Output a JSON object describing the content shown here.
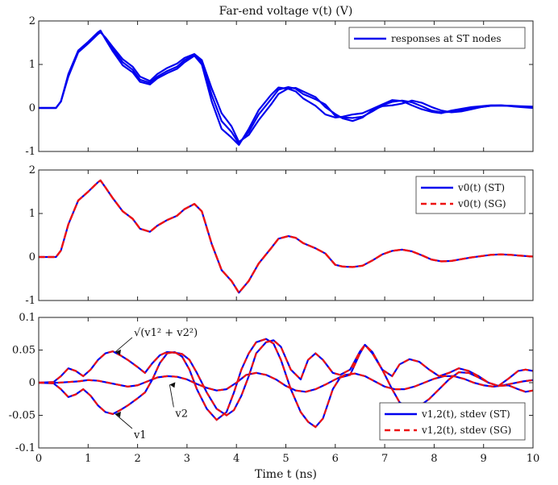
{
  "chart_data": [
    {
      "type": "line",
      "title": "Far-end voltage v(t) (V)",
      "xlabel": "",
      "ylabel": "",
      "xlim": [
        0,
        10
      ],
      "ylim": [
        -1,
        2
      ],
      "yticks": [
        "-1",
        "0",
        "1",
        "2"
      ],
      "legend": {
        "position": "top-right",
        "entries": [
          "responses at ST nodes"
        ]
      },
      "series": [
        {
          "name": "responses at ST nodes",
          "color": "#0000ee",
          "x": [
            0,
            0.35,
            0.45,
            0.6,
            0.8,
            1.0,
            1.2,
            1.25,
            1.35,
            1.5,
            1.7,
            1.9,
            2.05,
            2.25,
            2.4,
            2.6,
            2.8,
            2.95,
            3.15,
            3.3,
            3.5,
            3.7,
            3.9,
            4.05,
            4.25,
            4.45,
            4.7,
            4.85,
            5.05,
            5.2,
            5.35,
            5.6,
            5.8,
            6.0,
            6.15,
            6.35,
            6.55,
            6.75,
            6.95,
            7.15,
            7.35,
            7.55,
            7.75,
            7.95,
            8.15,
            8.35,
            8.55,
            8.75,
            8.95,
            9.15,
            9.35,
            9.55,
            9.75,
            10
          ],
          "y": [
            0,
            0,
            0.15,
            0.75,
            1.3,
            1.5,
            1.72,
            1.76,
            1.6,
            1.35,
            1.05,
            0.88,
            0.65,
            0.58,
            0.72,
            0.85,
            0.95,
            1.1,
            1.22,
            1.05,
            0.3,
            -0.3,
            -0.55,
            -0.82,
            -0.55,
            -0.15,
            0.2,
            0.42,
            0.48,
            0.44,
            0.32,
            0.2,
            0.08,
            -0.18,
            -0.22,
            -0.23,
            -0.2,
            -0.08,
            0.06,
            0.14,
            0.17,
            0.13,
            0.04,
            -0.06,
            -0.1,
            -0.09,
            -0.05,
            -0.01,
            0.02,
            0.05,
            0.06,
            0.05,
            0.03,
            0.01
          ]
        },
        {
          "name": "",
          "color": "#0000ee",
          "x": [
            0,
            0.35,
            0.45,
            0.6,
            0.8,
            1.0,
            1.2,
            1.25,
            1.35,
            1.5,
            1.7,
            1.9,
            2.05,
            2.25,
            2.4,
            2.6,
            2.8,
            2.95,
            3.15,
            3.3,
            3.5,
            3.7,
            3.9,
            4.05,
            4.25,
            4.45,
            4.7,
            4.85,
            5.05,
            5.2,
            5.35,
            5.6,
            5.8,
            6.0,
            6.15,
            6.35,
            6.55,
            6.75,
            6.95,
            7.15,
            7.35,
            7.55,
            7.75,
            7.95,
            8.15,
            8.35,
            8.55,
            8.75,
            8.95,
            9.15,
            9.35,
            9.55,
            9.75,
            10
          ],
          "y": [
            0,
            0,
            0.15,
            0.72,
            1.28,
            1.48,
            1.7,
            1.74,
            1.62,
            1.4,
            1.12,
            0.95,
            0.72,
            0.62,
            0.78,
            0.92,
            1.02,
            1.15,
            1.24,
            1.1,
            0.45,
            -0.12,
            -0.42,
            -0.78,
            -0.62,
            -0.28,
            0.08,
            0.32,
            0.45,
            0.46,
            0.38,
            0.25,
            0.02,
            -0.14,
            -0.24,
            -0.3,
            -0.22,
            -0.05,
            0.04,
            0.06,
            0.1,
            0.17,
            0.12,
            0.02,
            -0.06,
            -0.1,
            -0.08,
            -0.03,
            0.02,
            0.05,
            0.05,
            0.05,
            0.04,
            0.03
          ]
        },
        {
          "name": "",
          "color": "#0000ee",
          "x": [
            0,
            0.35,
            0.45,
            0.6,
            0.8,
            1.0,
            1.2,
            1.25,
            1.35,
            1.5,
            1.7,
            1.9,
            2.05,
            2.25,
            2.4,
            2.6,
            2.8,
            2.95,
            3.15,
            3.3,
            3.5,
            3.7,
            3.9,
            4.05,
            4.25,
            4.45,
            4.7,
            4.85,
            5.05,
            5.2,
            5.35,
            5.6,
            5.8,
            6.0,
            6.15,
            6.35,
            6.55,
            6.75,
            6.95,
            7.15,
            7.35,
            7.55,
            7.75,
            7.95,
            8.15,
            8.35,
            8.55,
            8.75,
            8.95,
            9.15,
            9.35,
            9.55,
            9.75,
            10
          ],
          "y": [
            0,
            0,
            0.15,
            0.78,
            1.32,
            1.52,
            1.74,
            1.78,
            1.58,
            1.3,
            0.98,
            0.82,
            0.6,
            0.54,
            0.68,
            0.8,
            0.9,
            1.05,
            1.2,
            1.0,
            0.15,
            -0.48,
            -0.68,
            -0.85,
            -0.48,
            -0.05,
            0.3,
            0.47,
            0.44,
            0.38,
            0.22,
            0.05,
            -0.15,
            -0.22,
            -0.2,
            -0.15,
            -0.12,
            -0.02,
            0.08,
            0.18,
            0.16,
            0.06,
            -0.03,
            -0.09,
            -0.12,
            -0.06,
            -0.02,
            0.02,
            0.04,
            0.06,
            0.06,
            0.04,
            0.02,
            0.0
          ]
        }
      ]
    },
    {
      "type": "line",
      "title": "",
      "xlabel": "",
      "ylabel": "",
      "xlim": [
        0,
        10
      ],
      "ylim": [
        -1,
        2
      ],
      "yticks": [
        "-1",
        "0",
        "1",
        "2"
      ],
      "legend": {
        "position": "top-right",
        "entries": [
          "v0(t) (ST)",
          "v0(t) (SG)"
        ]
      },
      "series": [
        {
          "name": "v0(t) (ST)",
          "color": "#0000ee",
          "style": "solid",
          "x": [
            0,
            0.35,
            0.45,
            0.6,
            0.8,
            1.0,
            1.2,
            1.25,
            1.35,
            1.5,
            1.7,
            1.9,
            2.05,
            2.25,
            2.4,
            2.6,
            2.8,
            2.95,
            3.15,
            3.3,
            3.5,
            3.7,
            3.9,
            4.05,
            4.25,
            4.45,
            4.7,
            4.85,
            5.05,
            5.2,
            5.35,
            5.6,
            5.8,
            6.0,
            6.15,
            6.35,
            6.55,
            6.75,
            6.95,
            7.15,
            7.35,
            7.55,
            7.75,
            7.95,
            8.15,
            8.35,
            8.55,
            8.75,
            8.95,
            9.15,
            9.35,
            9.55,
            9.75,
            10
          ],
          "y": [
            0,
            0,
            0.15,
            0.75,
            1.3,
            1.5,
            1.72,
            1.76,
            1.6,
            1.35,
            1.05,
            0.88,
            0.65,
            0.58,
            0.72,
            0.85,
            0.95,
            1.1,
            1.22,
            1.05,
            0.3,
            -0.3,
            -0.55,
            -0.82,
            -0.55,
            -0.15,
            0.2,
            0.42,
            0.48,
            0.44,
            0.32,
            0.2,
            0.08,
            -0.18,
            -0.22,
            -0.23,
            -0.2,
            -0.08,
            0.06,
            0.14,
            0.17,
            0.13,
            0.04,
            -0.06,
            -0.1,
            -0.09,
            -0.05,
            -0.01,
            0.02,
            0.05,
            0.06,
            0.05,
            0.03,
            0.01
          ]
        },
        {
          "name": "v0(t) (SG)",
          "color": "#ee1111",
          "style": "dashed",
          "x": [
            0,
            0.35,
            0.45,
            0.6,
            0.8,
            1.0,
            1.2,
            1.25,
            1.35,
            1.5,
            1.7,
            1.9,
            2.05,
            2.25,
            2.4,
            2.6,
            2.8,
            2.95,
            3.15,
            3.3,
            3.5,
            3.7,
            3.9,
            4.05,
            4.25,
            4.45,
            4.7,
            4.85,
            5.05,
            5.2,
            5.35,
            5.6,
            5.8,
            6.0,
            6.15,
            6.35,
            6.55,
            6.75,
            6.95,
            7.15,
            7.35,
            7.55,
            7.75,
            7.95,
            8.15,
            8.35,
            8.55,
            8.75,
            8.95,
            9.15,
            9.35,
            9.55,
            9.75,
            10
          ],
          "y": [
            0,
            0,
            0.15,
            0.75,
            1.3,
            1.5,
            1.72,
            1.76,
            1.6,
            1.35,
            1.05,
            0.88,
            0.65,
            0.58,
            0.72,
            0.85,
            0.95,
            1.1,
            1.22,
            1.05,
            0.3,
            -0.3,
            -0.55,
            -0.82,
            -0.55,
            -0.15,
            0.2,
            0.42,
            0.48,
            0.44,
            0.32,
            0.2,
            0.08,
            -0.18,
            -0.22,
            -0.23,
            -0.2,
            -0.08,
            0.06,
            0.14,
            0.17,
            0.13,
            0.04,
            -0.06,
            -0.1,
            -0.09,
            -0.05,
            -0.01,
            0.02,
            0.05,
            0.06,
            0.05,
            0.03,
            0.01
          ]
        }
      ]
    },
    {
      "type": "line",
      "title": "",
      "xlabel": "Time t (ns)",
      "ylabel": "",
      "xlim": [
        0,
        10
      ],
      "ylim": [
        -0.1,
        0.1
      ],
      "yticks": [
        "-0.1",
        "-0.05",
        "0",
        "0.05",
        "0.1"
      ],
      "xticks": [
        "0",
        "1",
        "2",
        "3",
        "4",
        "5",
        "6",
        "7",
        "8",
        "9",
        "10"
      ],
      "legend": {
        "position": "bottom-right",
        "entries": [
          "v1,2(t), stdev (ST)",
          "v1,2(t), stdev (SG)"
        ]
      },
      "annotations": [
        {
          "text": "√(v1² + v2²)",
          "points_to": [
            1.5,
            0.047
          ]
        },
        {
          "text": "v2",
          "points_to": [
            2.6,
            -0.003
          ]
        },
        {
          "text": "v1",
          "points_to": [
            1.5,
            -0.048
          ]
        }
      ],
      "series": [
        {
          "name": "stdev",
          "color": "#0000ee",
          "x": [
            0,
            0.3,
            0.45,
            0.6,
            0.75,
            0.9,
            1.05,
            1.2,
            1.35,
            1.5,
            1.65,
            1.8,
            2.0,
            2.15,
            2.3,
            2.45,
            2.6,
            2.75,
            2.9,
            3.05,
            3.2,
            3.4,
            3.6,
            3.8,
            3.95,
            4.1,
            4.25,
            4.4,
            4.6,
            4.75,
            4.9,
            5.1,
            5.3,
            5.45,
            5.6,
            5.75,
            5.95,
            6.1,
            6.3,
            6.5,
            6.6,
            6.75,
            6.95,
            7.15,
            7.3,
            7.5,
            7.7,
            7.9,
            8.1,
            8.3,
            8.5,
            8.7,
            8.9,
            9.1,
            9.3,
            9.5,
            9.7,
            9.85,
            10
          ],
          "y": [
            0,
            0.001,
            0.01,
            0.022,
            0.018,
            0.01,
            0.02,
            0.035,
            0.045,
            0.048,
            0.042,
            0.035,
            0.024,
            0.015,
            0.03,
            0.042,
            0.047,
            0.046,
            0.044,
            0.035,
            0.015,
            -0.015,
            -0.04,
            -0.05,
            -0.042,
            -0.02,
            0.01,
            0.045,
            0.062,
            0.065,
            0.055,
            0.02,
            0.005,
            0.035,
            0.045,
            0.035,
            0.015,
            0.012,
            0.02,
            0.048,
            0.058,
            0.045,
            0.02,
            0.01,
            0.028,
            0.036,
            0.032,
            0.02,
            0.01,
            0.015,
            0.022,
            0.018,
            0.01,
            0.0,
            -0.005,
            0.006,
            0.018,
            0.02,
            0.018
          ]
        },
        {
          "name": "v1",
          "color": "#0000ee",
          "x": [
            0,
            0.3,
            0.45,
            0.6,
            0.75,
            0.9,
            1.05,
            1.2,
            1.35,
            1.5,
            1.65,
            1.8,
            2.0,
            2.15,
            2.3,
            2.45,
            2.6,
            2.75,
            2.9,
            3.05,
            3.2,
            3.4,
            3.6,
            3.8,
            3.95,
            4.1,
            4.25,
            4.4,
            4.6,
            4.75,
            4.9,
            5.1,
            5.3,
            5.45,
            5.6,
            5.75,
            5.95,
            6.1,
            6.3,
            6.5,
            6.6,
            6.75,
            6.95,
            7.15,
            7.3,
            7.5,
            7.7,
            7.9,
            8.1,
            8.3,
            8.5,
            8.7,
            8.9,
            9.1,
            9.3,
            9.5,
            9.7,
            9.85,
            10
          ],
          "y": [
            0,
            -0.001,
            -0.01,
            -0.022,
            -0.018,
            -0.01,
            -0.02,
            -0.035,
            -0.045,
            -0.048,
            -0.042,
            -0.035,
            -0.024,
            -0.015,
            0.005,
            0.03,
            0.045,
            0.047,
            0.04,
            0.02,
            -0.01,
            -0.04,
            -0.057,
            -0.045,
            -0.015,
            0.02,
            0.045,
            0.062,
            0.067,
            0.06,
            0.035,
            -0.01,
            -0.045,
            -0.06,
            -0.068,
            -0.055,
            -0.01,
            0.008,
            0.012,
            0.045,
            0.058,
            0.047,
            0.02,
            -0.01,
            -0.03,
            -0.04,
            -0.036,
            -0.025,
            -0.01,
            0.005,
            0.016,
            0.015,
            0.008,
            0.0,
            -0.005,
            -0.004,
            -0.01,
            -0.014,
            -0.012
          ]
        },
        {
          "name": "v2",
          "color": "#0000ee",
          "x": [
            0,
            0.4,
            0.6,
            0.8,
            1.0,
            1.2,
            1.4,
            1.6,
            1.8,
            2.0,
            2.2,
            2.4,
            2.6,
            2.8,
            3.0,
            3.2,
            3.4,
            3.6,
            3.8,
            4.0,
            4.2,
            4.4,
            4.6,
            4.8,
            5.0,
            5.2,
            5.4,
            5.6,
            5.8,
            6.0,
            6.2,
            6.4,
            6.6,
            6.8,
            7.0,
            7.2,
            7.4,
            7.6,
            7.8,
            8.0,
            8.2,
            8.4,
            8.6,
            8.8,
            9.0,
            9.2,
            9.4,
            9.6,
            9.8,
            10
          ],
          "y": [
            0,
            0.0,
            0.001,
            0.002,
            0.004,
            0.003,
            0.0,
            -0.003,
            -0.006,
            -0.004,
            0.002,
            0.008,
            0.01,
            0.009,
            0.005,
            -0.002,
            -0.008,
            -0.012,
            -0.01,
            0.0,
            0.012,
            0.015,
            0.012,
            0.005,
            -0.005,
            -0.012,
            -0.014,
            -0.01,
            -0.003,
            0.005,
            0.012,
            0.014,
            0.01,
            0.002,
            -0.006,
            -0.01,
            -0.01,
            -0.006,
            0.0,
            0.006,
            0.01,
            0.01,
            0.006,
            0.0,
            -0.004,
            -0.006,
            -0.004,
            -0.001,
            0.002,
            0.004
          ]
        }
      ]
    }
  ]
}
